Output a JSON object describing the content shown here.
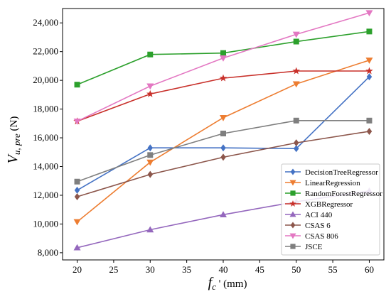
{
  "chart_data": {
    "type": "line",
    "x": [
      20,
      30,
      40,
      50,
      60
    ],
    "xlim": [
      18,
      62
    ],
    "ylim": [
      7500,
      25000
    ],
    "xticks": [
      20,
      25,
      30,
      35,
      40,
      45,
      50,
      55,
      60
    ],
    "yticks": [
      8000,
      10000,
      12000,
      14000,
      16000,
      18000,
      20000,
      22000,
      24000
    ],
    "ytick_labels": [
      "8,000",
      "10,000",
      "12,000",
      "14,000",
      "16,000",
      "18,000",
      "20,000",
      "22,000",
      "24,000"
    ],
    "xlabel": {
      "main": "f",
      "sub": "c",
      "suffix": " ' (mm)"
    },
    "ylabel": {
      "main": "V",
      "sub": "u, pre",
      "suffix": "  (N)"
    },
    "grid": false,
    "legend_position": "bottom-right",
    "series": [
      {
        "name": "DecisionTreeRegressor",
        "color": "#4472C4",
        "marker": "diamond",
        "values": [
          12350,
          15300,
          15300,
          15250,
          20250
        ]
      },
      {
        "name": "LinearRegression",
        "color": "#ED7D31",
        "marker": "triangle-down",
        "values": [
          10150,
          14300,
          17400,
          19750,
          21400
        ]
      },
      {
        "name": "RandomForestRegressor",
        "color": "#2CA02C",
        "marker": "square",
        "values": [
          19700,
          21800,
          21900,
          22700,
          23400
        ]
      },
      {
        "name": "XGBRegressor",
        "color": "#C8302A",
        "marker": "star",
        "values": [
          17150,
          19050,
          20150,
          20650,
          20650
        ]
      },
      {
        "name": "ACI 440",
        "color": "#9467BD",
        "marker": "triangle-up",
        "values": [
          8350,
          9600,
          10650,
          11550,
          12300
        ]
      },
      {
        "name": "CSAS 6",
        "color": "#8C564B",
        "marker": "diamond",
        "values": [
          11900,
          13450,
          14650,
          15650,
          16450
        ]
      },
      {
        "name": "CSAS 806",
        "color": "#E377C2",
        "marker": "triangle-down",
        "values": [
          17150,
          19600,
          21550,
          23200,
          24700
        ]
      },
      {
        "name": "JSCE",
        "color": "#7F7F7F",
        "marker": "square",
        "values": [
          12950,
          14800,
          16300,
          17200,
          17200
        ]
      }
    ]
  }
}
